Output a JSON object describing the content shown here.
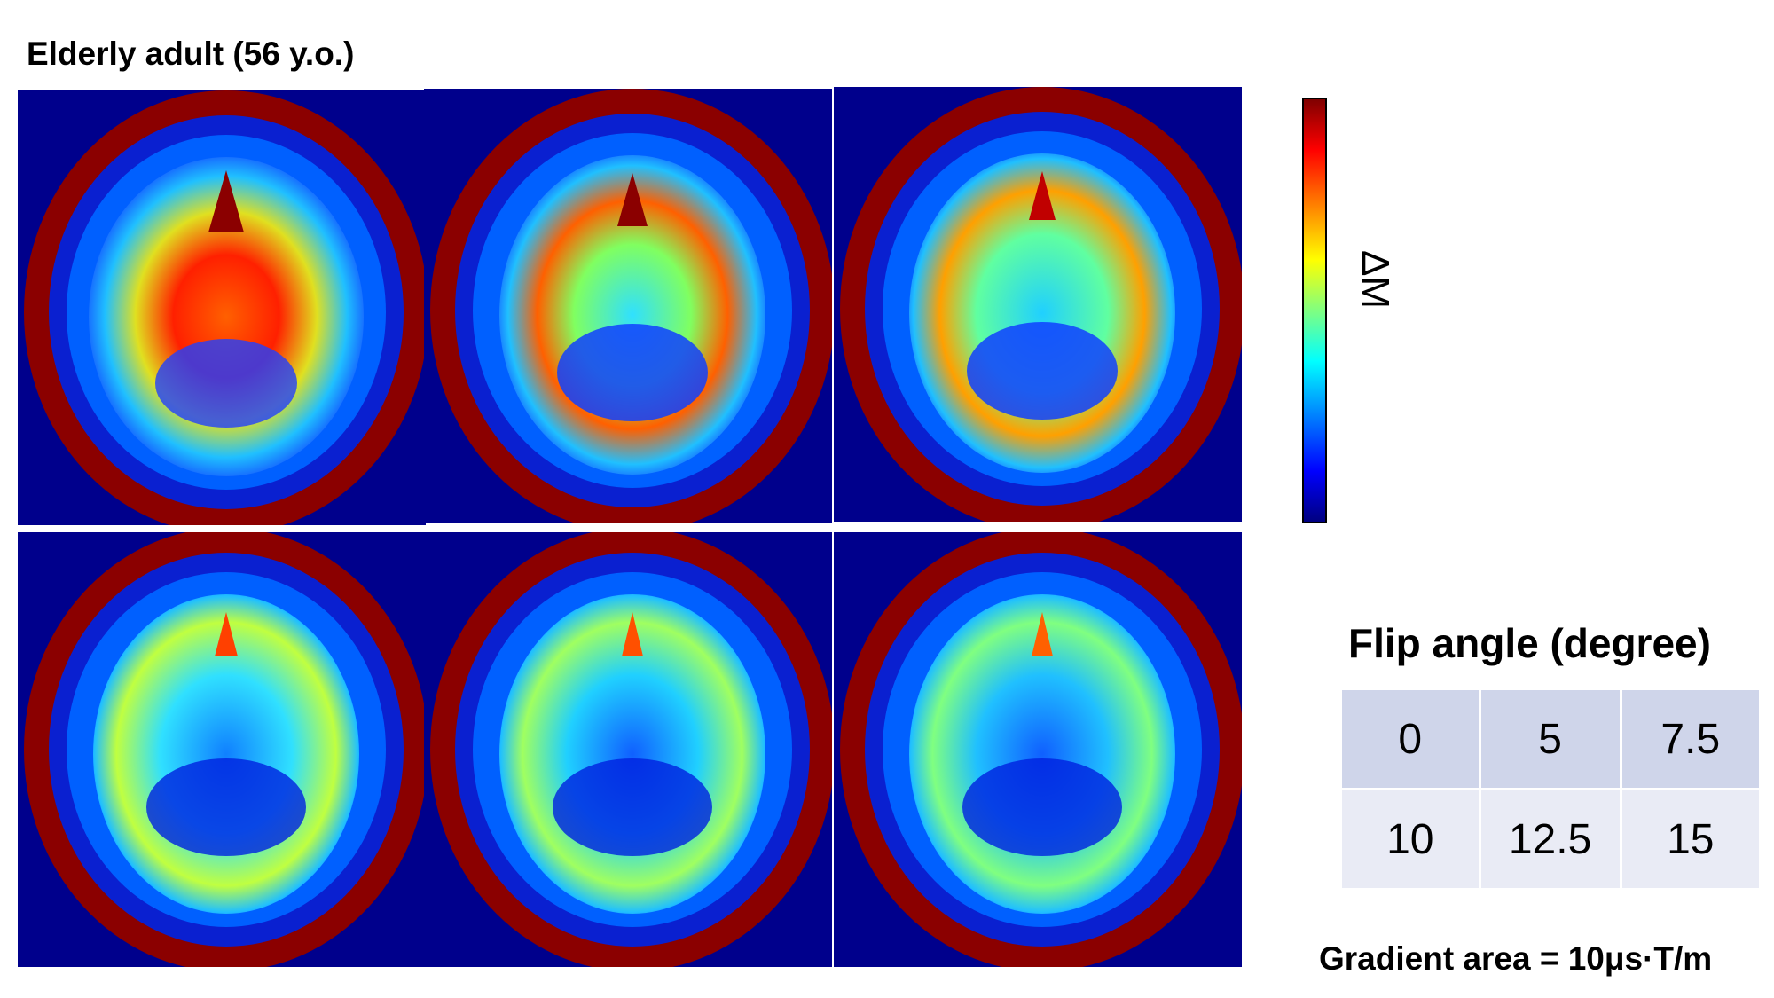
{
  "title": "Elderly adult (56 y.o.)",
  "panels": [
    {
      "icon": "mri-brain-scan-0",
      "flip_angle": "0"
    },
    {
      "icon": "mri-brain-scan-5",
      "flip_angle": "5"
    },
    {
      "icon": "mri-brain-scan-7.5",
      "flip_angle": "7.5"
    },
    {
      "icon": "mri-brain-scan-10",
      "flip_angle": "10"
    },
    {
      "icon": "mri-brain-scan-12.5",
      "flip_angle": "12.5"
    },
    {
      "icon": "mri-brain-scan-15",
      "flip_angle": "15"
    }
  ],
  "colorbar": {
    "label": "ΔM",
    "colormap": "jet"
  },
  "flip_angle_table": {
    "title": "Flip angle (degree)",
    "rows": [
      [
        "0",
        "5",
        "7.5"
      ],
      [
        "10",
        "12.5",
        "15"
      ]
    ]
  },
  "gradient_note": "Gradient area = 10μs·T/m",
  "colors": {
    "background_dark_blue": "#00008c",
    "skull_rim": "#8b0000",
    "table_row1": "#cfd5ea",
    "table_row2": "#e9ebf5"
  }
}
